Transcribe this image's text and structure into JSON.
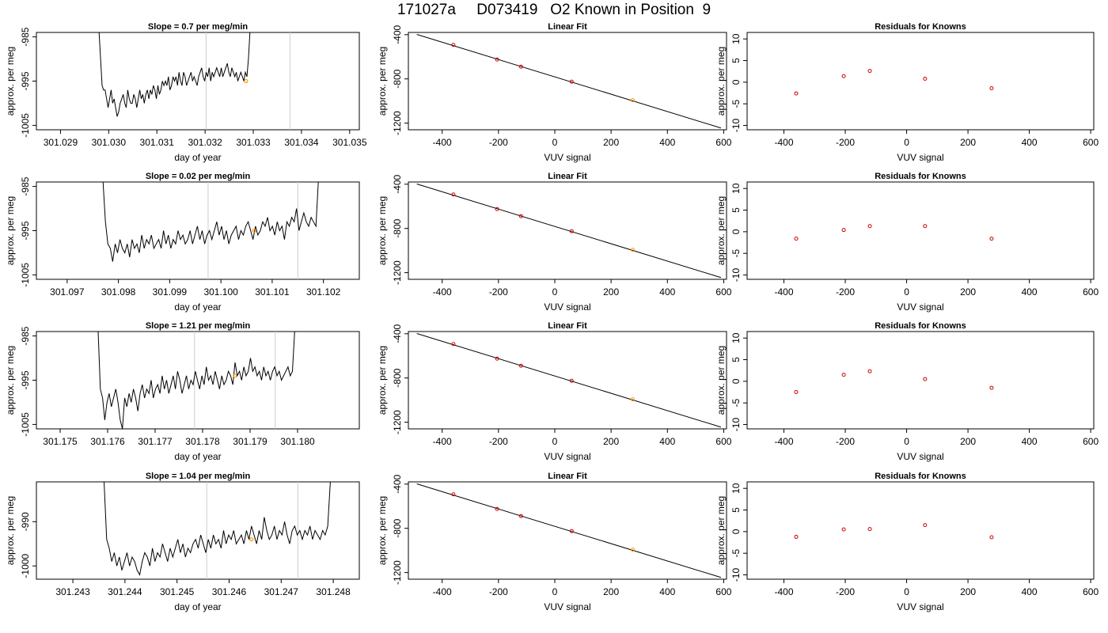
{
  "page_title": "171027a     D073419   O2 Known in Position  9",
  "colors": {
    "trace": "#000000",
    "fit_line": "#000000",
    "known_point": "#cc0000",
    "highlight_point": "#ff9900",
    "window_line": "#cccccc"
  },
  "chart_data": [
    {
      "type": "line",
      "row": 0,
      "title": "Slope =  0.7  per meg/min",
      "xlabel": "day of year",
      "ylabel": "approx. per meg",
      "xlim": [
        301.0285,
        301.0352
      ],
      "ylim": [
        -1006,
        -984
      ],
      "x_ticks": [
        "301.029",
        "301.030",
        "301.031",
        "301.032",
        "301.033",
        "301.034",
        "301.035"
      ],
      "y_ticks": [
        "-985",
        "-995",
        "-1005"
      ],
      "x_start": 301.0298,
      "x_step": 3.13e-05,
      "values": [
        -984,
        -990,
        -996,
        -997,
        -997,
        -999,
        -1001,
        -999,
        -997,
        -1000,
        -999,
        -1001,
        -1003,
        -1002,
        -1000,
        -999,
        -998,
        -1000,
        -1001,
        -997,
        -999,
        -1000,
        -1000,
        -998,
        -999,
        -1001,
        -999,
        -997,
        -999,
        -998,
        -1000,
        -998,
        -997,
        -999,
        -997,
        -998,
        -996,
        -997,
        -999,
        -996,
        -998,
        -997,
        -995,
        -996,
        -995,
        -996,
        -994,
        -997,
        -996,
        -994,
        -995,
        -994,
        -996,
        -993,
        -995,
        -996,
        -993,
        -994,
        -996,
        -995,
        -994,
        -993,
        -995,
        -994,
        -995,
        -996,
        -994,
        -993,
        -992,
        -994,
        -995,
        -993,
        -994,
        -992,
        -995,
        -993,
        -994,
        -993,
        -992,
        -993,
        -994,
        -992,
        -994,
        -993,
        -992,
        -991,
        -993,
        -994,
        -992,
        -993,
        -994,
        -993,
        -995,
        -994,
        -993,
        -994,
        -995,
        -993,
        -994,
        -990,
        -984
      ],
      "window": [
        301.03202,
        301.03376
      ],
      "highlight": {
        "x": 301.03285,
        "y": -995
      }
    },
    {
      "type": "scatter",
      "row": 0,
      "title": "Linear Fit",
      "xlabel": "VUV signal",
      "ylabel": "approx. per meg",
      "xlim": [
        -520,
        610
      ],
      "ylim": [
        -1260,
        -380
      ],
      "x_ticks": [
        "-400",
        "-200",
        "0",
        "200",
        "400",
        "600"
      ],
      "y_ticks": [
        "-400",
        "-800",
        "-1200"
      ],
      "points": [
        {
          "x": -360,
          "y": -493
        },
        {
          "x": -205,
          "y": -625
        },
        {
          "x": -120,
          "y": -689
        },
        {
          "x": 60,
          "y": -825
        },
        {
          "x": 277,
          "y": -993
        }
      ],
      "highlight_index": 4,
      "fit_line": [
        {
          "x": -490,
          "y": -398
        },
        {
          "x": 590,
          "y": -1244
        }
      ]
    },
    {
      "type": "scatter",
      "row": 0,
      "title": "Residuals for Knowns",
      "xlabel": "VUV signal",
      "ylabel": "approx. per meg",
      "xlim": [
        -520,
        610
      ],
      "ylim": [
        -11,
        11.5
      ],
      "x_ticks": [
        "-400",
        "-200",
        "0",
        "200",
        "400",
        "600"
      ],
      "y_ticks": [
        "10",
        "5",
        "0",
        "-5",
        "-10"
      ],
      "points": [
        {
          "x": -360,
          "y": -2.6
        },
        {
          "x": -205,
          "y": 1.4
        },
        {
          "x": -120,
          "y": 2.6
        },
        {
          "x": 60,
          "y": 0.8
        },
        {
          "x": 277,
          "y": -1.4
        }
      ]
    },
    {
      "type": "line",
      "row": 1,
      "title": "Slope =  0.02  per meg/min",
      "xlabel": "day of year",
      "ylabel": "approx. per meg",
      "xlim": [
        301.0964,
        301.1027
      ],
      "ylim": [
        -1006,
        -984
      ],
      "x_ticks": [
        "301.097",
        "301.098",
        "301.099",
        "301.100",
        "301.101",
        "301.102"
      ],
      "y_ticks": [
        "-985",
        "-995",
        "-1005"
      ],
      "x_start": 301.0977,
      "x_step": 4.72e-05,
      "values": [
        -984,
        -993,
        -998,
        -999,
        -1002,
        -998,
        -1000,
        -997,
        -999,
        -1000,
        -998,
        -1001,
        -997,
        -999,
        -998,
        -1000,
        -996,
        -999,
        -997,
        -998,
        -996,
        -999,
        -998,
        -997,
        -999,
        -995,
        -998,
        -996,
        -999,
        -997,
        -998,
        -995,
        -997,
        -996,
        -998,
        -997,
        -995,
        -998,
        -996,
        -994,
        -997,
        -995,
        -998,
        -996,
        -995,
        -997,
        -995,
        -993,
        -996,
        -994,
        -997,
        -995,
        -998,
        -996,
        -995,
        -994,
        -997,
        -995,
        -996,
        -994,
        -993,
        -995,
        -997,
        -994,
        -996,
        -995,
        -993,
        -994,
        -992,
        -995,
        -994,
        -996,
        -993,
        -995,
        -994,
        -997,
        -993,
        -994,
        -992,
        -993,
        -990,
        -995,
        -993,
        -991,
        -993,
        -994,
        -992,
        -993,
        -994,
        -984
      ],
      "window": [
        301.09975,
        301.1015
      ],
      "highlight": {
        "x": 301.10065,
        "y": -995
      }
    },
    {
      "type": "scatter",
      "row": 1,
      "title": "Linear Fit",
      "xlabel": "VUV signal",
      "ylabel": "approx. per meg",
      "xlim": [
        -520,
        610
      ],
      "ylim": [
        -1260,
        -380
      ],
      "x_ticks": [
        "-400",
        "-200",
        "0",
        "200",
        "400",
        "600"
      ],
      "y_ticks": [
        "-400",
        "-800",
        "-1200"
      ],
      "points": [
        {
          "x": -360,
          "y": -493
        },
        {
          "x": -205,
          "y": -625
        },
        {
          "x": -120,
          "y": -689
        },
        {
          "x": 60,
          "y": -825
        },
        {
          "x": 277,
          "y": -993
        }
      ],
      "highlight_index": 4,
      "fit_line": [
        {
          "x": -490,
          "y": -398
        },
        {
          "x": 590,
          "y": -1244
        }
      ]
    },
    {
      "type": "scatter",
      "row": 1,
      "title": "Residuals for Knowns",
      "xlabel": "VUV signal",
      "ylabel": "approx. per meg",
      "xlim": [
        -520,
        610
      ],
      "ylim": [
        -11,
        11.5
      ],
      "x_ticks": [
        "-400",
        "-200",
        "0",
        "200",
        "400",
        "600"
      ],
      "y_ticks": [
        "10",
        "5",
        "0",
        "-5",
        "-10"
      ],
      "points": [
        {
          "x": -360,
          "y": -1.6
        },
        {
          "x": -205,
          "y": 0.4
        },
        {
          "x": -120,
          "y": 1.3
        },
        {
          "x": 60,
          "y": 1.3
        },
        {
          "x": 277,
          "y": -1.6
        }
      ]
    },
    {
      "type": "line",
      "row": 2,
      "title": "Slope =  1.21  per meg/min",
      "xlabel": "day of year",
      "ylabel": "approx. per meg",
      "xlim": [
        301.1745,
        301.1813
      ],
      "ylim": [
        -1006,
        -984
      ],
      "x_ticks": [
        "301.175",
        "301.176",
        "301.177",
        "301.178",
        "301.179",
        "301.180"
      ],
      "y_ticks": [
        "-985",
        "-995",
        "-1005"
      ],
      "x_start": 301.1758,
      "x_step": 4.65e-05,
      "values": [
        -984,
        -997,
        -999,
        -1004,
        -1000,
        -998,
        -1001,
        -999,
        -997,
        -1000,
        -1004,
        -1006,
        -999,
        -1001,
        -998,
        -1000,
        -997,
        -999,
        -1002,
        -998,
        -996,
        -999,
        -997,
        -998,
        -995,
        -999,
        -997,
        -996,
        -998,
        -994,
        -997,
        -995,
        -998,
        -996,
        -994,
        -997,
        -993,
        -995,
        -998,
        -996,
        -994,
        -997,
        -995,
        -996,
        -993,
        -995,
        -997,
        -994,
        -996,
        -992,
        -995,
        -994,
        -996,
        -993,
        -995,
        -997,
        -994,
        -996,
        -995,
        -993,
        -994,
        -996,
        -991,
        -994,
        -993,
        -995,
        -992,
        -994,
        -993,
        -990,
        -993,
        -992,
        -994,
        -993,
        -995,
        -992,
        -994,
        -993,
        -995,
        -993,
        -992,
        -994,
        -993,
        -995,
        -994,
        -993,
        -992,
        -994,
        -993,
        -984
      ],
      "window": [
        301.17783,
        301.17953
      ],
      "highlight": {
        "x": 301.17868,
        "y": -994
      }
    },
    {
      "type": "scatter",
      "row": 2,
      "title": "Linear Fit",
      "xlabel": "VUV signal",
      "ylabel": "approx. per meg",
      "xlim": [
        -520,
        610
      ],
      "ylim": [
        -1260,
        -380
      ],
      "x_ticks": [
        "-400",
        "-200",
        "0",
        "200",
        "400",
        "600"
      ],
      "y_ticks": [
        "-400",
        "-800",
        "-1200"
      ],
      "points": [
        {
          "x": -360,
          "y": -493
        },
        {
          "x": -205,
          "y": -625
        },
        {
          "x": -120,
          "y": -689
        },
        {
          "x": 60,
          "y": -825
        },
        {
          "x": 277,
          "y": -993
        }
      ],
      "highlight_index": 4,
      "fit_line": [
        {
          "x": -490,
          "y": -398
        },
        {
          "x": 590,
          "y": -1244
        }
      ]
    },
    {
      "type": "scatter",
      "row": 2,
      "title": "Residuals for Knowns",
      "xlabel": "VUV signal",
      "ylabel": "approx. per meg",
      "xlim": [
        -520,
        610
      ],
      "ylim": [
        -11,
        11.5
      ],
      "x_ticks": [
        "-400",
        "-200",
        "0",
        "200",
        "400",
        "600"
      ],
      "y_ticks": [
        "10",
        "5",
        "0",
        "-5",
        "-10"
      ],
      "points": [
        {
          "x": -360,
          "y": -2.5
        },
        {
          "x": -205,
          "y": 1.5
        },
        {
          "x": -120,
          "y": 2.3
        },
        {
          "x": 60,
          "y": 0.5
        },
        {
          "x": 277,
          "y": -1.5
        }
      ]
    },
    {
      "type": "line",
      "row": 3,
      "title": "Slope =  1.04  per meg/min",
      "xlabel": "day of year",
      "ylabel": "approx. per meg",
      "xlim": [
        301.2423,
        301.2485
      ],
      "ylim": [
        -1003,
        -981
      ],
      "x_ticks": [
        "301.243",
        "301.244",
        "301.245",
        "301.246",
        "301.247",
        "301.248"
      ],
      "y_ticks": [
        "-990",
        "-1000"
      ],
      "x_start": 301.2436,
      "x_step": 4.88e-05,
      "values": [
        -981,
        -994,
        -996,
        -999,
        -997,
        -1000,
        -998,
        -1001,
        -999,
        -997,
        -1000,
        -998,
        -999,
        -1001,
        -1002,
        -999,
        -997,
        -998,
        -1000,
        -996,
        -999,
        -997,
        -998,
        -995,
        -997,
        -999,
        -996,
        -998,
        -996,
        -994,
        -997,
        -995,
        -998,
        -996,
        -997,
        -995,
        -994,
        -996,
        -993,
        -995,
        -997,
        -994,
        -996,
        -993,
        -995,
        -994,
        -996,
        -992,
        -995,
        -993,
        -994,
        -992,
        -995,
        -994,
        -993,
        -995,
        -992,
        -994,
        -991,
        -993,
        -995,
        -992,
        -994,
        -989,
        -992,
        -994,
        -993,
        -991,
        -994,
        -992,
        -993,
        -990,
        -993,
        -995,
        -992,
        -991,
        -993,
        -992,
        -994,
        -992,
        -993,
        -991,
        -994,
        -992,
        -993,
        -994,
        -992,
        -993,
        -991,
        -981
      ],
      "window": [
        301.24557,
        301.24732
      ],
      "highlight": {
        "x": 301.24643,
        "y": -994
      }
    },
    {
      "type": "scatter",
      "row": 3,
      "title": "Linear Fit",
      "xlabel": "VUV signal",
      "ylabel": "approx. per meg",
      "xlim": [
        -520,
        610
      ],
      "ylim": [
        -1260,
        -380
      ],
      "x_ticks": [
        "-400",
        "-200",
        "0",
        "200",
        "400",
        "600"
      ],
      "y_ticks": [
        "-400",
        "-800",
        "-1200"
      ],
      "points": [
        {
          "x": -360,
          "y": -493
        },
        {
          "x": -205,
          "y": -625
        },
        {
          "x": -120,
          "y": -689
        },
        {
          "x": 60,
          "y": -825
        },
        {
          "x": 277,
          "y": -993
        }
      ],
      "highlight_index": 4,
      "fit_line": [
        {
          "x": -490,
          "y": -398
        },
        {
          "x": 590,
          "y": -1244
        }
      ]
    },
    {
      "type": "scatter",
      "row": 3,
      "title": "Residuals for Knowns",
      "xlabel": "VUV signal",
      "ylabel": "approx. per meg",
      "xlim": [
        -520,
        610
      ],
      "ylim": [
        -11,
        11.5
      ],
      "x_ticks": [
        "-400",
        "-200",
        "0",
        "200",
        "400",
        "600"
      ],
      "y_ticks": [
        "10",
        "5",
        "0",
        "-5",
        "-10"
      ],
      "points": [
        {
          "x": -360,
          "y": -1.2
        },
        {
          "x": -205,
          "y": 0.5
        },
        {
          "x": -120,
          "y": 0.6
        },
        {
          "x": 60,
          "y": 1.5
        },
        {
          "x": 277,
          "y": -1.3
        }
      ]
    }
  ]
}
